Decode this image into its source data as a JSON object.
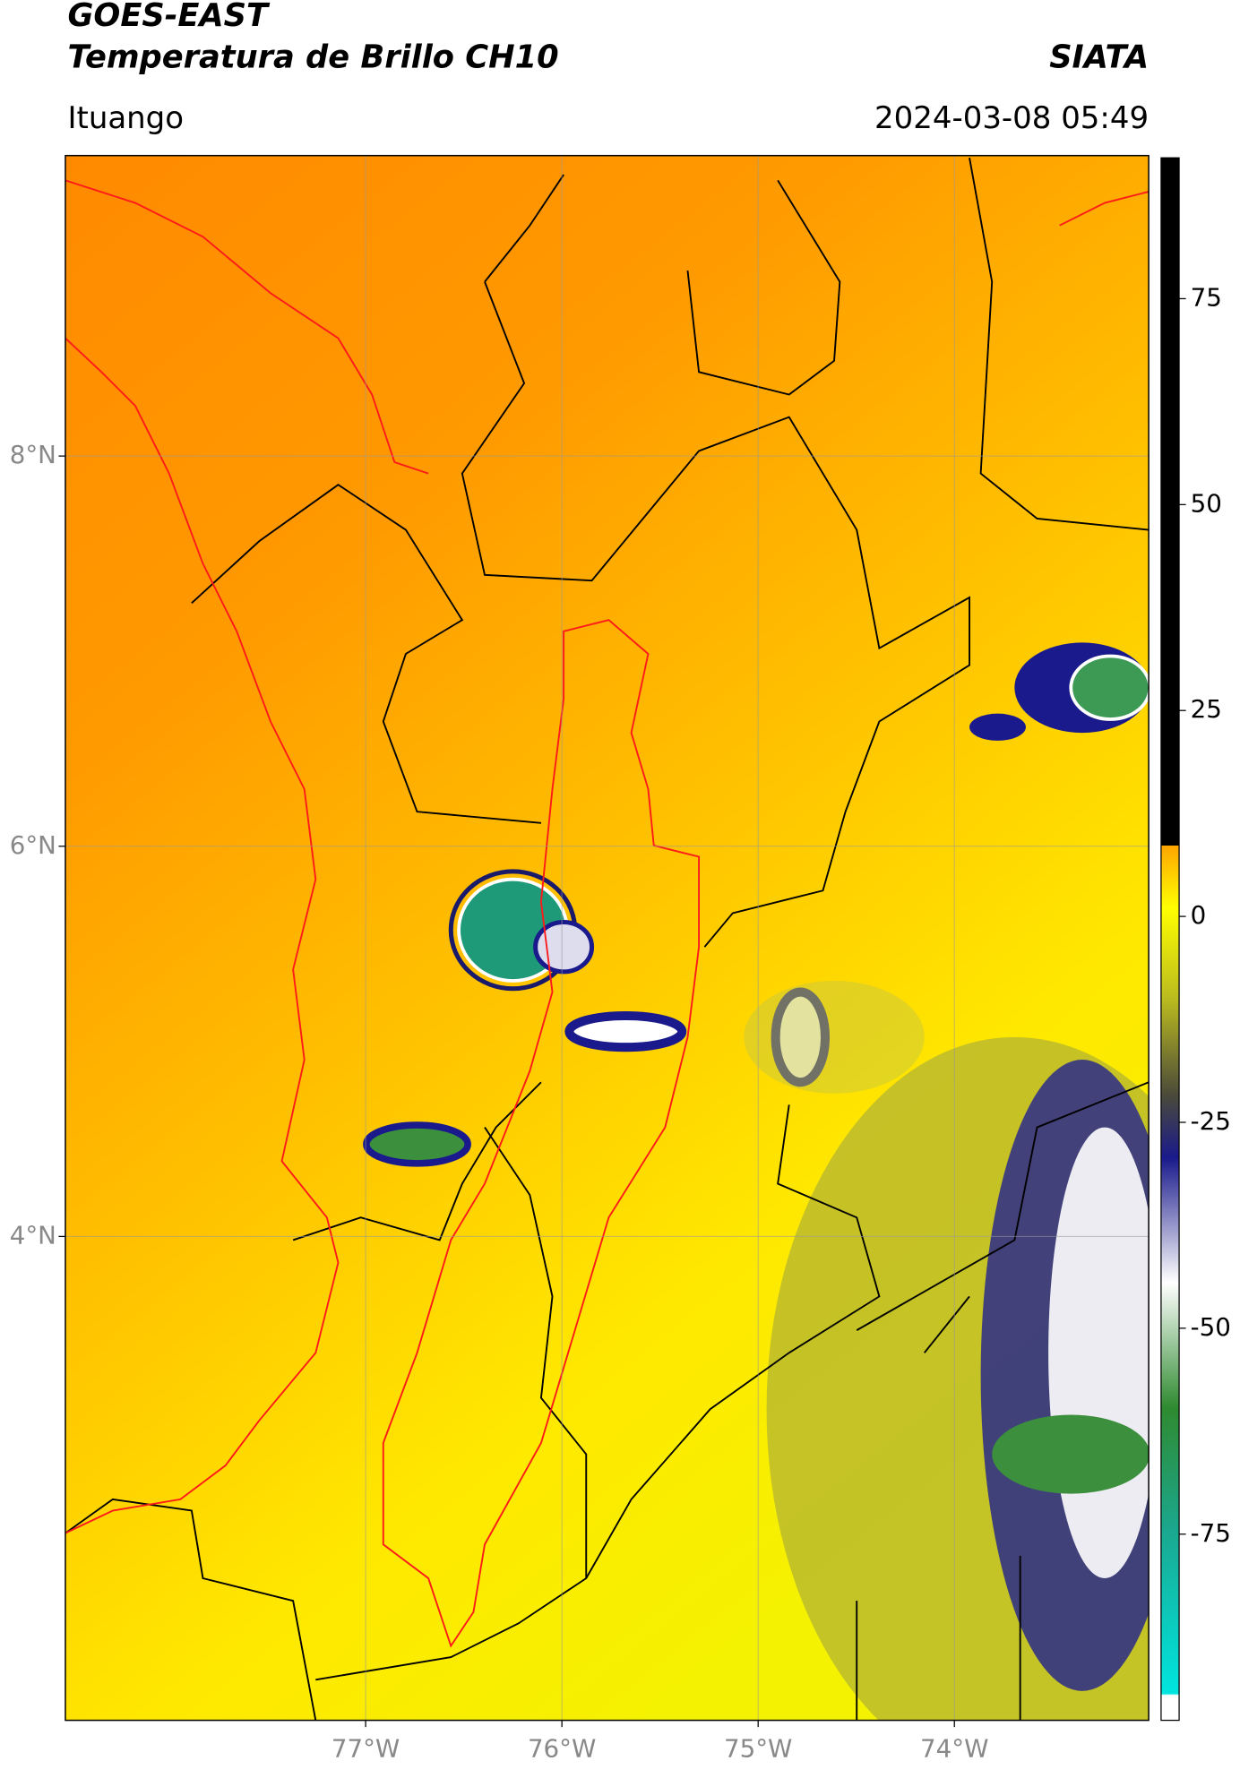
{
  "header": {
    "title_line1": "GOES-EAST",
    "title_line2": "Temperatura de Brillo CH10",
    "agency": "SIATA",
    "location": "Ituango",
    "datetime": "2024-03-08 05:49"
  },
  "map": {
    "xlim": [
      -78.53,
      -73.01
    ],
    "ylim": [
      1.52,
      9.54
    ],
    "xticks": [
      {
        "value": -77,
        "label": "77°W"
      },
      {
        "value": -76,
        "label": "76°W"
      },
      {
        "value": -75,
        "label": "75°W"
      },
      {
        "value": -74,
        "label": "74°W"
      }
    ],
    "yticks": [
      {
        "value": 8,
        "label": "8°N"
      },
      {
        "value": 6,
        "label": "6°N"
      },
      {
        "value": 4,
        "label": "4°N"
      }
    ],
    "grid": true
  },
  "colorbar": {
    "lim": [
      -97.6,
      92.1
    ],
    "ticks": [
      75,
      50,
      25,
      0,
      -25,
      -50,
      -75
    ]
  }
}
